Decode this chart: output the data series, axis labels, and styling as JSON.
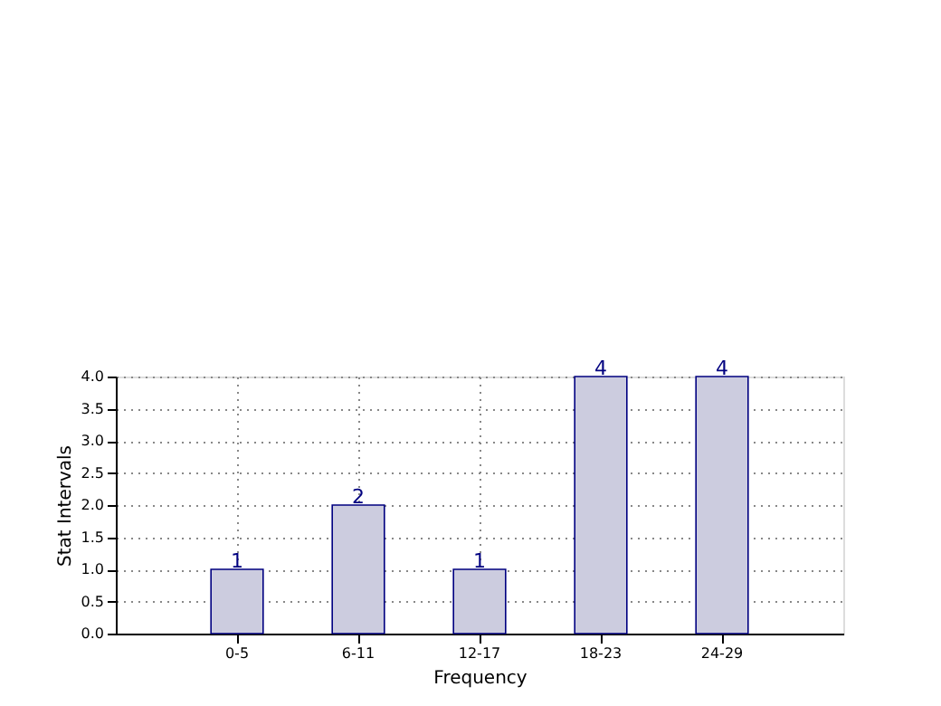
{
  "chart_data": {
    "type": "bar",
    "xlabel": "Frequency",
    "ylabel": "Stat Intervals",
    "categories": [
      "0-5",
      "6-11",
      "12-17",
      "18-23",
      "24-29"
    ],
    "values": [
      1,
      2,
      1,
      4,
      4
    ],
    "color": "#ccccdf",
    "ylim": [
      0,
      4
    ],
    "yticks": [
      {
        "value": 0,
        "label": "0.0"
      },
      {
        "value": 0.5,
        "label": "0.5"
      },
      {
        "value": 1,
        "label": "1.0"
      },
      {
        "value": 1.5,
        "label": "1.5"
      },
      {
        "value": 2,
        "label": "2.0"
      },
      {
        "value": 2.5,
        "label": "2.5"
      },
      {
        "value": 3,
        "label": "3.0"
      },
      {
        "value": 3.5,
        "label": "3.5"
      },
      {
        "value": 4,
        "label": "4.0"
      }
    ],
    "grid": true,
    "data_labels": true
  }
}
